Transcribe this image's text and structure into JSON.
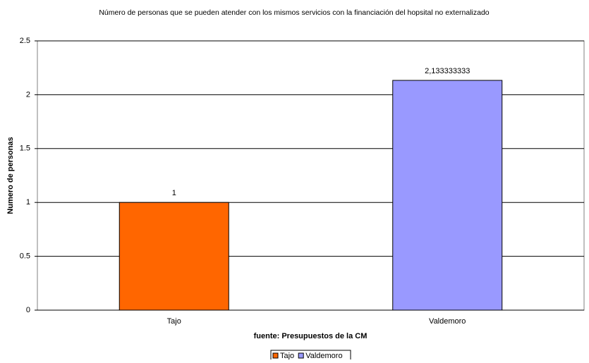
{
  "chart_data": {
    "type": "bar",
    "title": "Número de personas que se pueden atender con los mismos servicios con la financiación del hopsital no externalizado",
    "x_label": "fuente: Presupuestos de la CM",
    "y_label": "Numero de personas",
    "categories": [
      "Tajo",
      "Valdemoro"
    ],
    "values": [
      1,
      2.133333333
    ],
    "value_labels": [
      "1",
      "2,133333333"
    ],
    "colors": [
      "#ff6600",
      "#9999ff"
    ],
    "ylim": [
      0,
      2.5
    ],
    "yticks": [
      0,
      0.5,
      1,
      1.5,
      2,
      2.5
    ],
    "grid": true,
    "legend": "bottom"
  }
}
